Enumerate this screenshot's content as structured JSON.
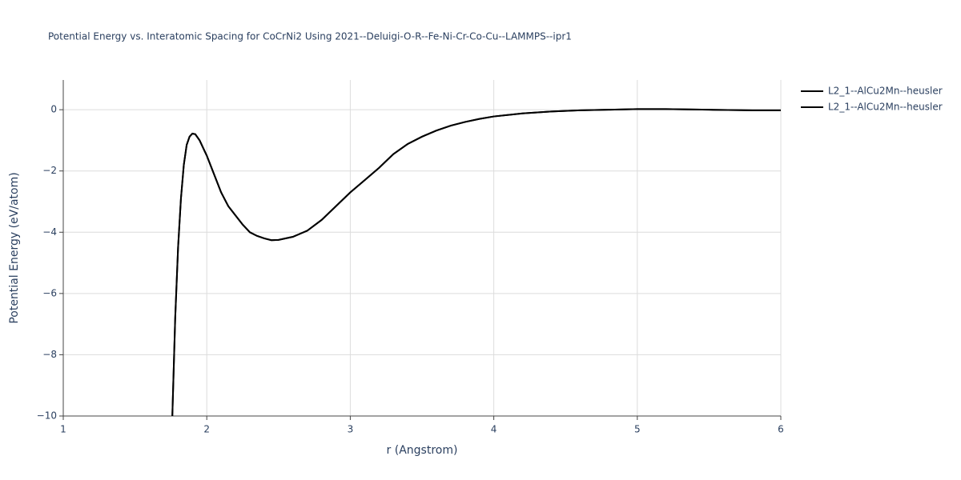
{
  "chart_data": {
    "type": "line",
    "title": "Potential Energy vs. Interatomic Spacing for CoCrNi2 Using 2021--Deluigi-O-R--Fe-Ni-Cr-Co-Cu--LAMMPS--ipr1",
    "x_label": "r (Angstrom)",
    "y_label": "Potential Energy (eV/atom)",
    "x": [
      1.76,
      1.78,
      1.8,
      1.82,
      1.84,
      1.86,
      1.88,
      1.9,
      1.92,
      1.95,
      2.0,
      2.05,
      2.1,
      2.15,
      2.2,
      2.25,
      2.3,
      2.35,
      2.4,
      2.45,
      2.5,
      2.6,
      2.7,
      2.8,
      2.9,
      3.0,
      3.1,
      3.2,
      3.3,
      3.4,
      3.5,
      3.6,
      3.7,
      3.8,
      3.9,
      4.0,
      4.2,
      4.4,
      4.6,
      4.8,
      5.0,
      5.2,
      5.5,
      5.8,
      6.0
    ],
    "series": [
      {
        "name": "L2_1--AlCu2Mn--heusler",
        "color": "#000000",
        "values": [
          -10,
          -6.8,
          -4.5,
          -2.9,
          -1.8,
          -1.15,
          -0.88,
          -0.78,
          -0.8,
          -1.0,
          -1.5,
          -2.1,
          -2.7,
          -3.15,
          -3.45,
          -3.75,
          -4.0,
          -4.12,
          -4.2,
          -4.26,
          -4.25,
          -4.15,
          -3.95,
          -3.6,
          -3.15,
          -2.7,
          -2.3,
          -1.9,
          -1.45,
          -1.12,
          -0.88,
          -0.68,
          -0.52,
          -0.4,
          -0.3,
          -0.22,
          -0.12,
          -0.06,
          -0.02,
          0.0,
          0.02,
          0.02,
          0.0,
          -0.02,
          -0.02
        ]
      },
      {
        "name": "L2_1--AlCu2Mn--heusler",
        "color": "#000000",
        "values": [
          -10,
          -6.8,
          -4.5,
          -2.9,
          -1.8,
          -1.15,
          -0.88,
          -0.78,
          -0.8,
          -1.0,
          -1.5,
          -2.1,
          -2.7,
          -3.15,
          -3.45,
          -3.75,
          -4.0,
          -4.12,
          -4.2,
          -4.26,
          -4.25,
          -4.15,
          -3.95,
          -3.6,
          -3.15,
          -2.7,
          -2.3,
          -1.9,
          -1.45,
          -1.12,
          -0.88,
          -0.68,
          -0.52,
          -0.4,
          -0.3,
          -0.22,
          -0.12,
          -0.06,
          -0.02,
          0.0,
          0.02,
          0.02,
          0.0,
          -0.02,
          -0.02
        ]
      }
    ],
    "xlim": [
      1,
      6
    ],
    "xticks": [
      1,
      2,
      3,
      4,
      5,
      6
    ],
    "ylim": [
      -10,
      0.97
    ],
    "yticks": [
      {
        "value": -10,
        "label": "−10"
      },
      {
        "value": -8,
        "label": "−8"
      },
      {
        "value": -6,
        "label": "−6"
      },
      {
        "value": -4,
        "label": "−4"
      },
      {
        "value": -2,
        "label": "−2"
      },
      0
    ],
    "grid": true,
    "legend": "right"
  }
}
